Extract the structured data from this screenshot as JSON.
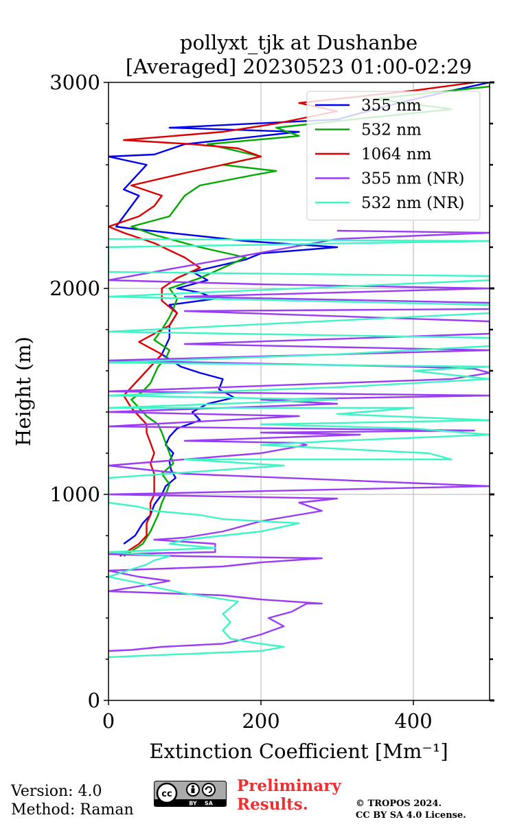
{
  "chart_data": {
    "type": "line",
    "title": "pollyxt_tjk at Dushanbe",
    "subtitle": "[Averaged] 20230523 01:00-02:29",
    "xlabel": "Extinction Coefficient [Mm⁻¹]",
    "ylabel": "Height (m)",
    "xlim": [
      0,
      500
    ],
    "ylim": [
      0,
      3000
    ],
    "xticks": [
      "0",
      "200",
      "400"
    ],
    "yticks": [
      "0",
      "1000",
      "2000",
      "3000"
    ],
    "grid": "vertical-on",
    "legend_position": "top-right",
    "series": [
      {
        "name": "355 nm",
        "color": "#0000ee",
        "points": [
          [
            20,
            760
          ],
          [
            35,
            800
          ],
          [
            45,
            860
          ],
          [
            55,
            900
          ],
          [
            60,
            950
          ],
          [
            70,
            1000
          ],
          [
            75,
            1040
          ],
          [
            88,
            1080
          ],
          [
            82,
            1120
          ],
          [
            80,
            1160
          ],
          [
            85,
            1200
          ],
          [
            75,
            1240
          ],
          [
            80,
            1280
          ],
          [
            90,
            1320
          ],
          [
            120,
            1360
          ],
          [
            110,
            1400
          ],
          [
            130,
            1440
          ],
          [
            165,
            1470
          ],
          [
            145,
            1510
          ],
          [
            150,
            1560
          ],
          [
            120,
            1590
          ],
          [
            95,
            1620
          ],
          [
            70,
            1680
          ],
          [
            80,
            1760
          ],
          [
            80,
            1820
          ],
          [
            90,
            1880
          ],
          [
            80,
            1920
          ],
          [
            140,
            1950
          ],
          [
            120,
            1980
          ],
          [
            90,
            2000
          ],
          [
            130,
            2040
          ],
          [
            110,
            2080
          ],
          [
            180,
            2140
          ],
          [
            200,
            2170
          ],
          [
            300,
            2200
          ],
          [
            180,
            2230
          ],
          [
            130,
            2250
          ],
          [
            80,
            2270
          ],
          [
            30,
            2290
          ],
          [
            10,
            2300
          ],
          [
            40,
            2450
          ],
          [
            20,
            2480
          ],
          [
            50,
            2600
          ],
          [
            0,
            2640
          ],
          [
            60,
            2650
          ],
          [
            100,
            2700
          ],
          [
            250,
            2760
          ],
          [
            80,
            2780
          ],
          [
            300,
            2820
          ],
          [
            380,
            2900
          ],
          [
            450,
            2960
          ],
          [
            500,
            3000
          ]
        ]
      },
      {
        "name": "532 nm",
        "color": "#00aa00",
        "points": [
          [
            20,
            700
          ],
          [
            45,
            760
          ],
          [
            55,
            820
          ],
          [
            65,
            900
          ],
          [
            70,
            960
          ],
          [
            75,
            1000
          ],
          [
            80,
            1050
          ],
          [
            70,
            1100
          ],
          [
            85,
            1150
          ],
          [
            80,
            1200
          ],
          [
            75,
            1250
          ],
          [
            70,
            1300
          ],
          [
            65,
            1340
          ],
          [
            50,
            1380
          ],
          [
            40,
            1420
          ],
          [
            30,
            1460
          ],
          [
            45,
            1500
          ],
          [
            55,
            1540
          ],
          [
            60,
            1580
          ],
          [
            65,
            1620
          ],
          [
            75,
            1660
          ],
          [
            80,
            1700
          ],
          [
            60,
            1750
          ],
          [
            70,
            1800
          ],
          [
            80,
            1860
          ],
          [
            85,
            1900
          ],
          [
            90,
            1950
          ],
          [
            80,
            2000
          ],
          [
            120,
            2050
          ],
          [
            150,
            2100
          ],
          [
            180,
            2150
          ],
          [
            120,
            2200
          ],
          [
            60,
            2260
          ],
          [
            30,
            2300
          ],
          [
            80,
            2350
          ],
          [
            90,
            2400
          ],
          [
            100,
            2450
          ],
          [
            120,
            2500
          ],
          [
            190,
            2550
          ],
          [
            220,
            2570
          ],
          [
            150,
            2600
          ],
          [
            200,
            2640
          ],
          [
            130,
            2700
          ],
          [
            250,
            2740
          ],
          [
            220,
            2780
          ],
          [
            320,
            2820
          ],
          [
            450,
            2870
          ],
          [
            350,
            2920
          ],
          [
            500,
            2980
          ]
        ]
      },
      {
        "name": "1064 nm",
        "color": "#dd0000",
        "points": [
          [
            15,
            700
          ],
          [
            40,
            760
          ],
          [
            50,
            800
          ],
          [
            50,
            860
          ],
          [
            55,
            900
          ],
          [
            55,
            960
          ],
          [
            60,
            1000
          ],
          [
            60,
            1050
          ],
          [
            60,
            1100
          ],
          [
            55,
            1150
          ],
          [
            60,
            1200
          ],
          [
            55,
            1250
          ],
          [
            50,
            1300
          ],
          [
            50,
            1340
          ],
          [
            40,
            1380
          ],
          [
            30,
            1420
          ],
          [
            20,
            1480
          ],
          [
            30,
            1520
          ],
          [
            40,
            1560
          ],
          [
            50,
            1600
          ],
          [
            60,
            1640
          ],
          [
            70,
            1680
          ],
          [
            40,
            1740
          ],
          [
            60,
            1780
          ],
          [
            80,
            1820
          ],
          [
            90,
            1880
          ],
          [
            70,
            1940
          ],
          [
            70,
            2000
          ],
          [
            90,
            2050
          ],
          [
            120,
            2100
          ],
          [
            100,
            2150
          ],
          [
            60,
            2220
          ],
          [
            20,
            2270
          ],
          [
            0,
            2300
          ],
          [
            40,
            2350
          ],
          [
            60,
            2400
          ],
          [
            70,
            2450
          ],
          [
            30,
            2500
          ],
          [
            100,
            2560
          ],
          [
            150,
            2600
          ],
          [
            200,
            2640
          ],
          [
            170,
            2680
          ],
          [
            110,
            2700
          ],
          [
            20,
            2720
          ],
          [
            150,
            2760
          ],
          [
            220,
            2800
          ],
          [
            300,
            2860
          ],
          [
            250,
            2900
          ],
          [
            400,
            2960
          ],
          [
            480,
            3000
          ]
        ]
      },
      {
        "name": "355 nm (NR)",
        "color": "#9a3cf5",
        "points": [
          [
            0,
            240
          ],
          [
            30,
            245
          ],
          [
            70,
            260
          ],
          [
            150,
            275
          ],
          [
            170,
            290
          ],
          [
            200,
            320
          ],
          [
            230,
            360
          ],
          [
            210,
            400
          ],
          [
            240,
            430
          ],
          [
            260,
            470
          ],
          [
            280,
            470
          ],
          [
            200,
            490
          ],
          [
            150,
            510
          ],
          [
            0,
            530
          ],
          [
            50,
            560
          ],
          [
            80,
            580
          ],
          [
            40,
            600
          ],
          [
            0,
            630
          ],
          [
            150,
            650
          ],
          [
            200,
            670
          ],
          [
            280,
            690
          ],
          [
            100,
            700
          ],
          [
            0,
            710
          ],
          [
            140,
            720
          ],
          [
            140,
            760
          ],
          [
            60,
            780
          ],
          [
            100,
            790
          ],
          [
            150,
            820
          ],
          [
            200,
            870
          ],
          [
            280,
            920
          ],
          [
            250,
            960
          ],
          [
            300,
            980
          ],
          [
            0,
            1000
          ],
          [
            500,
            1040
          ],
          [
            100,
            1100
          ],
          [
            0,
            1140
          ],
          [
            200,
            1200
          ],
          [
            260,
            1240
          ],
          [
            250,
            1250
          ],
          [
            100,
            1260
          ],
          [
            330,
            1290
          ],
          [
            200,
            1300
          ],
          [
            480,
            1310
          ],
          [
            0,
            1330
          ],
          [
            250,
            1380
          ],
          [
            0,
            1400
          ],
          [
            300,
            1440
          ],
          [
            200,
            1460
          ],
          [
            500,
            1480
          ],
          [
            0,
            1500
          ],
          [
            450,
            1560
          ],
          [
            500,
            1590
          ],
          [
            480,
            1610
          ],
          [
            400,
            1620
          ],
          [
            0,
            1650
          ],
          [
            500,
            1700
          ],
          [
            100,
            1730
          ],
          [
            500,
            1780
          ],
          [
            500,
            1840
          ],
          [
            100,
            1890
          ],
          [
            500,
            1900
          ],
          [
            500,
            1930
          ],
          [
            100,
            1960
          ],
          [
            500,
            2000
          ],
          [
            200,
            2020
          ],
          [
            0,
            2040
          ],
          [
            300,
            2240
          ],
          [
            500,
            2270
          ],
          [
            300,
            2280
          ]
        ]
      },
      {
        "name": "532 nm (NR)",
        "color": "#3ef5c6",
        "points": [
          [
            0,
            210
          ],
          [
            100,
            225
          ],
          [
            200,
            240
          ],
          [
            230,
            260
          ],
          [
            190,
            280
          ],
          [
            160,
            300
          ],
          [
            150,
            340
          ],
          [
            160,
            380
          ],
          [
            150,
            420
          ],
          [
            160,
            450
          ],
          [
            170,
            480
          ],
          [
            100,
            520
          ],
          [
            60,
            550
          ],
          [
            40,
            570
          ],
          [
            0,
            600
          ],
          [
            50,
            660
          ],
          [
            60,
            680
          ],
          [
            80,
            700
          ],
          [
            0,
            720
          ],
          [
            140,
            740
          ],
          [
            80,
            760
          ],
          [
            100,
            780
          ],
          [
            200,
            820
          ],
          [
            250,
            860
          ],
          [
            150,
            880
          ],
          [
            120,
            900
          ],
          [
            60,
            920
          ],
          [
            40,
            940
          ],
          [
            0,
            960
          ],
          [
            0,
            1000
          ],
          [
            0,
            1050
          ],
          [
            0,
            1080
          ],
          [
            230,
            1140
          ],
          [
            100,
            1170
          ],
          [
            450,
            1170
          ],
          [
            420,
            1200
          ],
          [
            200,
            1240
          ],
          [
            300,
            1260
          ],
          [
            500,
            1290
          ],
          [
            400,
            1320
          ],
          [
            200,
            1340
          ],
          [
            500,
            1360
          ],
          [
            300,
            1390
          ],
          [
            400,
            1420
          ],
          [
            0,
            1420
          ],
          [
            300,
            1460
          ],
          [
            0,
            1480
          ],
          [
            300,
            1520
          ],
          [
            500,
            1560
          ],
          [
            400,
            1600
          ],
          [
            500,
            1620
          ],
          [
            0,
            1640
          ],
          [
            300,
            1680
          ],
          [
            500,
            1720
          ],
          [
            500,
            1760
          ],
          [
            0,
            1790
          ],
          [
            500,
            1880
          ],
          [
            500,
            1920
          ],
          [
            0,
            1960
          ],
          [
            500,
            2040
          ],
          [
            500,
            2060
          ],
          [
            0,
            2080
          ],
          [
            0,
            2200
          ],
          [
            500,
            2230
          ],
          [
            0,
            2240
          ]
        ]
      }
    ]
  },
  "footer": {
    "version": "Version: 4.0",
    "method": "Method: Raman",
    "preliminary_line1": "Preliminary",
    "preliminary_line2": "Results.",
    "copyright_line1": "© TROPOS 2024.",
    "copyright_line2": "CC BY SA 4.0 License.",
    "license_badge": {
      "icons": [
        "cc-icon",
        "by-icon",
        "sa-icon"
      ],
      "labels": [
        "BY",
        "SA"
      ]
    }
  }
}
